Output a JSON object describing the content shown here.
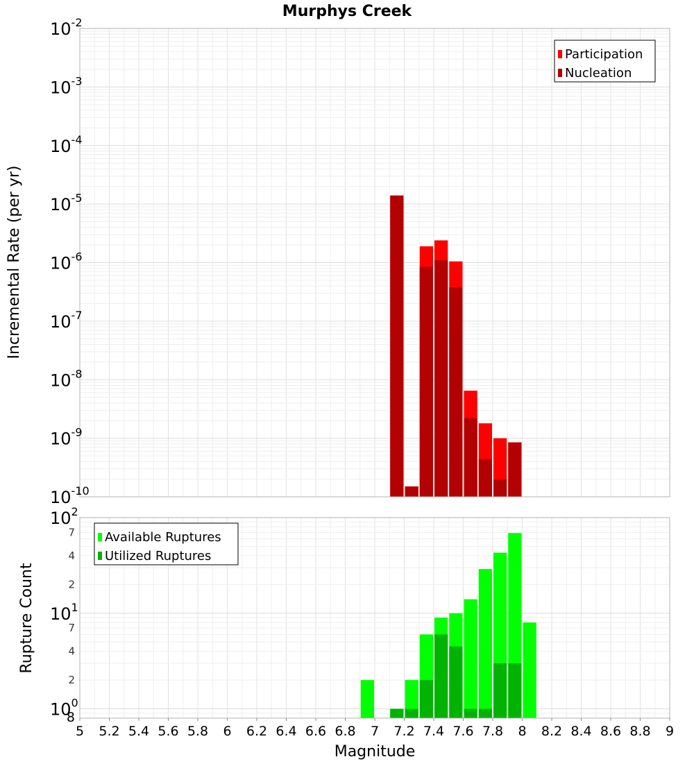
{
  "chart_data": [
    {
      "type": "bar",
      "title": "Murphys Creek",
      "xlabel": "Magnitude",
      "ylabel": "Incremental Rate (per yr)",
      "yscale": "log",
      "ylim": [
        1e-10,
        0.01
      ],
      "xlim": [
        5,
        9
      ],
      "y_major_ticks": [
        {
          "base": "10",
          "exp": "-10"
        },
        {
          "base": "10",
          "exp": "-9"
        },
        {
          "base": "10",
          "exp": "-8"
        },
        {
          "base": "10",
          "exp": "-7"
        },
        {
          "base": "10",
          "exp": "-6"
        },
        {
          "base": "10",
          "exp": "-5"
        },
        {
          "base": "10",
          "exp": "-4"
        },
        {
          "base": "10",
          "exp": "-3"
        },
        {
          "base": "10",
          "exp": "-2"
        }
      ],
      "grid": true,
      "legend_position": "top-right",
      "series": [
        {
          "name": "Participation",
          "color": "#ff0000",
          "x": [
            7.1,
            7.2,
            7.3,
            7.4,
            7.5,
            7.6,
            7.7,
            7.8,
            7.9
          ],
          "values": [
            1.4e-05,
            1.5e-10,
            1.9e-06,
            2.4e-06,
            1.05e-06,
            6.5e-09,
            1.8e-09,
            1e-09,
            8.5e-10
          ]
        },
        {
          "name": "Nucleation",
          "color": "#b30000",
          "x": [
            7.1,
            7.2,
            7.3,
            7.4,
            7.5,
            7.6,
            7.7,
            7.8,
            7.9
          ],
          "values": [
            1.4e-05,
            1.5e-10,
            8.5e-07,
            1.1e-06,
            3.8e-07,
            2.2e-09,
            4.4e-10,
            2e-10,
            8.5e-10
          ]
        }
      ]
    },
    {
      "type": "bar",
      "xlabel": "Magnitude",
      "ylabel": "Rupture Count",
      "yscale": "log",
      "ylim": [
        0.8,
        100
      ],
      "xlim": [
        5,
        9
      ],
      "x_ticks": [
        "5",
        "5.2",
        "5.4",
        "5.6",
        "5.8",
        "6",
        "6.2",
        "6.4",
        "6.6",
        "6.8",
        "7",
        "7.2",
        "7.4",
        "7.6",
        "7.8",
        "8",
        "8.2",
        "8.4",
        "8.6",
        "8.8",
        "9"
      ],
      "y_major_ticks": [
        {
          "value": 1,
          "base": "10",
          "exp": "0"
        },
        {
          "value": 10,
          "base": "10",
          "exp": "1"
        },
        {
          "value": 100,
          "base": "10",
          "exp": "2"
        }
      ],
      "y_minor_labels": [
        {
          "value": 0.8,
          "label": "8"
        },
        {
          "value": 2,
          "label": "2"
        },
        {
          "value": 4,
          "label": "4"
        },
        {
          "value": 7,
          "label": "7"
        },
        {
          "value": 20,
          "label": "2"
        },
        {
          "value": 40,
          "label": "4"
        },
        {
          "value": 70,
          "label": "7"
        }
      ],
      "grid": true,
      "legend_position": "top-left",
      "series": [
        {
          "name": "Available Ruptures",
          "color": "#00ff00",
          "x": [
            6.9,
            7.1,
            7.2,
            7.3,
            7.4,
            7.5,
            7.6,
            7.7,
            7.8,
            7.9,
            8.0
          ],
          "values": [
            2,
            1,
            2,
            6,
            9,
            10,
            14,
            29,
            43,
            69,
            8
          ]
        },
        {
          "name": "Utilized Ruptures",
          "color": "#00b300",
          "x": [
            7.1,
            7.2,
            7.3,
            7.4,
            7.5,
            7.6,
            7.7,
            7.8,
            7.9
          ],
          "values": [
            1,
            1,
            2,
            6,
            4.5,
            1,
            1,
            3,
            3
          ]
        }
      ]
    }
  ]
}
